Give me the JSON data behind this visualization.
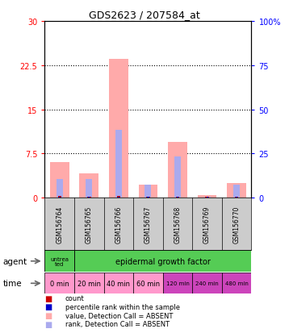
{
  "title": "GDS2623 / 207584_at",
  "samples": [
    "GSM156764",
    "GSM156765",
    "GSM156766",
    "GSM156767",
    "GSM156768",
    "GSM156769",
    "GSM156770"
  ],
  "pink_values": [
    6.0,
    4.2,
    23.5,
    2.2,
    9.5,
    0.4,
    2.5
  ],
  "blue_values": [
    3.2,
    3.2,
    11.5,
    2.2,
    7.0,
    0.15,
    2.2
  ],
  "red_dot_values": [
    0.3,
    0.25,
    0.3,
    0.2,
    0.25,
    0.12,
    0.2
  ],
  "blue_dot_values": [
    0.25,
    0.25,
    0.25,
    0.25,
    0.25,
    0.12,
    0.25
  ],
  "left_yticks": [
    0,
    7.5,
    15,
    22.5,
    30
  ],
  "right_ytick_labels": [
    "0",
    "25",
    "50",
    "75",
    "100%"
  ],
  "ylim_left": [
    0,
    30
  ],
  "ylim_right": [
    0,
    100
  ],
  "time_labels": [
    "0 min",
    "20 min",
    "40 min",
    "60 min",
    "120 min",
    "240 min",
    "480 min"
  ],
  "time_colors": [
    "#ff99cc",
    "#ff99cc",
    "#ff99cc",
    "#ff99cc",
    "#cc44bb",
    "#cc44bb",
    "#cc44bb"
  ],
  "agent_color": "#55cc55",
  "gsm_bg_color": "#cccccc",
  "bar_color_pink": "#ffaaaa",
  "bar_color_blue": "#aaaaee",
  "dot_color_red": "#cc0000",
  "dot_color_blue": "#0000cc",
  "legend_items": [
    {
      "label": "count",
      "color": "#cc0000"
    },
    {
      "label": "percentile rank within the sample",
      "color": "#0000cc"
    },
    {
      "label": "value, Detection Call = ABSENT",
      "color": "#ffaaaa"
    },
    {
      "label": "rank, Detection Call = ABSENT",
      "color": "#aaaaee"
    }
  ],
  "plot_bg": "#ffffff",
  "grid_color": "#000000"
}
